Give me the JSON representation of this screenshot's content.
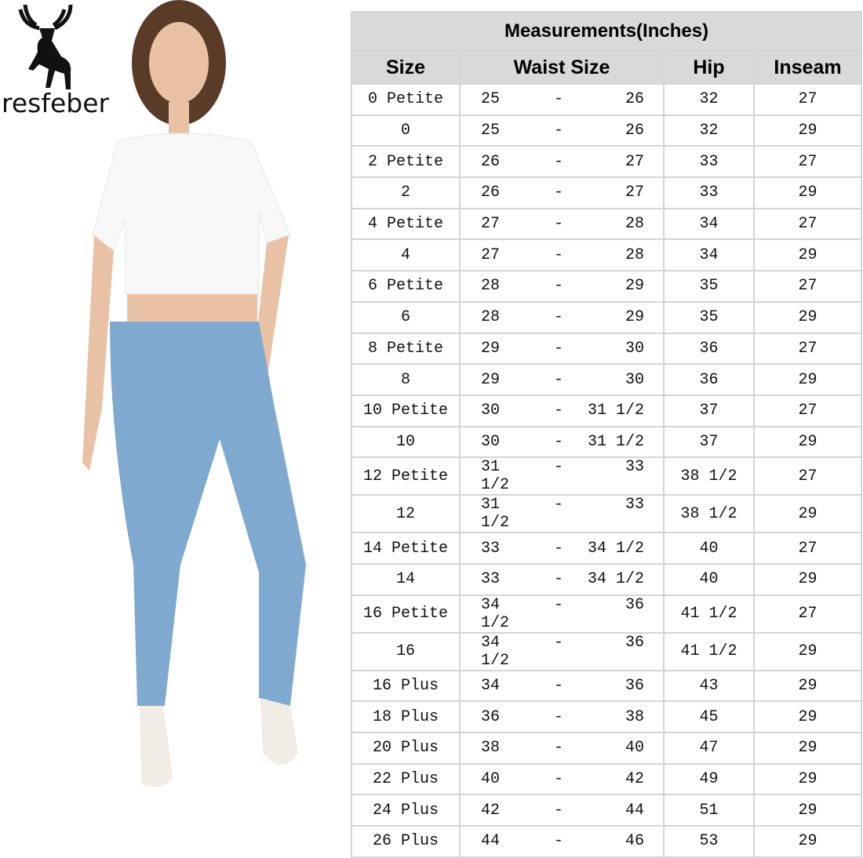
{
  "brand": {
    "name": "resfeber",
    "logo_icon": "deer-icon"
  },
  "table": {
    "title": "Measurements(Inches)",
    "headers": [
      "Size",
      "Waist Size",
      "Hip",
      "Inseam"
    ],
    "header_bg": "#d9d9d9",
    "rows": [
      {
        "size": "0 Petite",
        "waist_min": "25",
        "waist_max": "26",
        "hip": "32",
        "inseam": "27"
      },
      {
        "size": "0",
        "waist_min": "25",
        "waist_max": "26",
        "hip": "32",
        "inseam": "29"
      },
      {
        "size": "2 Petite",
        "waist_min": "26",
        "waist_max": "27",
        "hip": "33",
        "inseam": "27"
      },
      {
        "size": "2",
        "waist_min": "26",
        "waist_max": "27",
        "hip": "33",
        "inseam": "29"
      },
      {
        "size": "4 Petite",
        "waist_min": "27",
        "waist_max": "28",
        "hip": "34",
        "inseam": "27"
      },
      {
        "size": "4",
        "waist_min": "27",
        "waist_max": "28",
        "hip": "34",
        "inseam": "29"
      },
      {
        "size": "6 Petite",
        "waist_min": "28",
        "waist_max": "29",
        "hip": "35",
        "inseam": "27"
      },
      {
        "size": "6",
        "waist_min": "28",
        "waist_max": "29",
        "hip": "35",
        "inseam": "29"
      },
      {
        "size": "8 Petite",
        "waist_min": "29",
        "waist_max": "30",
        "hip": "36",
        "inseam": "27"
      },
      {
        "size": "8",
        "waist_min": "29",
        "waist_max": "30",
        "hip": "36",
        "inseam": "29"
      },
      {
        "size": "10 Petite",
        "waist_min": "30",
        "waist_max": "31 1/2",
        "hip": "37",
        "inseam": "27"
      },
      {
        "size": "10",
        "waist_min": "30",
        "waist_max": "31 1/2",
        "hip": "37",
        "inseam": "29"
      },
      {
        "size": "12 Petite",
        "waist_min": "31 1/2",
        "waist_max": "33",
        "hip": "38 1/2",
        "inseam": "27"
      },
      {
        "size": "12",
        "waist_min": "31 1/2",
        "waist_max": "33",
        "hip": "38 1/2",
        "inseam": "29"
      },
      {
        "size": "14 Petite",
        "waist_min": "33",
        "waist_max": "34 1/2",
        "hip": "40",
        "inseam": "27"
      },
      {
        "size": "14",
        "waist_min": "33",
        "waist_max": "34 1/2",
        "hip": "40",
        "inseam": "29"
      },
      {
        "size": "16 Petite",
        "waist_min": "34 1/2",
        "waist_max": "36",
        "hip": "41 1/2",
        "inseam": "27"
      },
      {
        "size": "16",
        "waist_min": "34 1/2",
        "waist_max": "36",
        "hip": "41 1/2",
        "inseam": "29"
      },
      {
        "size": "16 Plus",
        "waist_min": "34",
        "waist_max": "36",
        "hip": "43",
        "inseam": "29"
      },
      {
        "size": "18 Plus",
        "waist_min": "36",
        "waist_max": "38",
        "hip": "45",
        "inseam": "29"
      },
      {
        "size": "20 Plus",
        "waist_min": "38",
        "waist_max": "40",
        "hip": "47",
        "inseam": "29"
      },
      {
        "size": "22 Plus",
        "waist_min": "40",
        "waist_max": "42",
        "hip": "49",
        "inseam": "29"
      },
      {
        "size": "24 Plus",
        "waist_min": "42",
        "waist_max": "44",
        "hip": "51",
        "inseam": "29"
      },
      {
        "size": "26 Plus",
        "waist_min": "44",
        "waist_max": "46",
        "hip": "53",
        "inseam": "29"
      }
    ],
    "range_separator": "-"
  }
}
